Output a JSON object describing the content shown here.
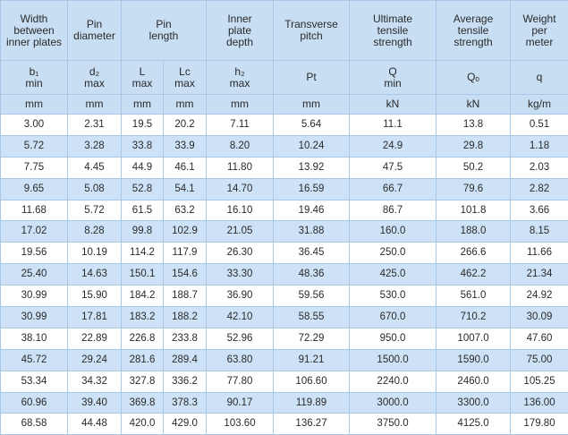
{
  "table": {
    "header": [
      {
        "text": "Width\nbetween\ninner plates",
        "span": 1
      },
      {
        "text": "Pin\ndiameter",
        "span": 1
      },
      {
        "text": "Pin\nlength",
        "span": 2
      },
      {
        "text": "Inner\nplate\ndepth",
        "span": 1
      },
      {
        "text": "Transverse\npitch",
        "span": 1
      },
      {
        "text": "Ultimate\ntensile\nstrength",
        "span": 1
      },
      {
        "text": "Average\ntensile\nstrength",
        "span": 1
      },
      {
        "text": "Weight\nper\nmeter",
        "span": 1
      }
    ],
    "symbols": [
      "b₁\nmin",
      "d₂\nmax",
      "L\nmax",
      "Lᴄ\nmax",
      "h₂\nmax",
      "Pt",
      "Q\nmin",
      "Qₒ",
      "q"
    ],
    "units": [
      "mm",
      "mm",
      "mm",
      "mm",
      "mm",
      "mm",
      "kN",
      "kN",
      "kg/m"
    ],
    "rows": [
      [
        "3.00",
        "2.31",
        "19.5",
        "20.2",
        "7.11",
        "5.64",
        "11.1",
        "13.8",
        "0.51"
      ],
      [
        "5.72",
        "3.28",
        "33.8",
        "33.9",
        "8.20",
        "10.24",
        "24.9",
        "29.8",
        "1.18"
      ],
      [
        "7.75",
        "4.45",
        "44.9",
        "46.1",
        "11.80",
        "13.92",
        "47.5",
        "50.2",
        "2.03"
      ],
      [
        "9.65",
        "5.08",
        "52.8",
        "54.1",
        "14.70",
        "16.59",
        "66.7",
        "79.6",
        "2.82"
      ],
      [
        "11.68",
        "5.72",
        "61.5",
        "63.2",
        "16.10",
        "19.46",
        "86.7",
        "101.8",
        "3.66"
      ],
      [
        "17.02",
        "8.28",
        "99.8",
        "102.9",
        "21.05",
        "31.88",
        "160.0",
        "188.0",
        "8.15"
      ],
      [
        "19.56",
        "10.19",
        "114.2",
        "117.9",
        "26.30",
        "36.45",
        "250.0",
        "266.6",
        "11.66"
      ],
      [
        "25.40",
        "14.63",
        "150.1",
        "154.6",
        "33.30",
        "48.36",
        "425.0",
        "462.2",
        "21.34"
      ],
      [
        "30.99",
        "15.90",
        "184.2",
        "188.7",
        "36.90",
        "59.56",
        "530.0",
        "561.0",
        "24.92"
      ],
      [
        "30.99",
        "17.81",
        "183.2",
        "188.2",
        "42.10",
        "58.55",
        "670.0",
        "710.2",
        "30.09"
      ],
      [
        "38.10",
        "22.89",
        "226.8",
        "233.8",
        "52.96",
        "72.29",
        "950.0",
        "1007.0",
        "47.60"
      ],
      [
        "45.72",
        "29.24",
        "281.6",
        "289.4",
        "63.80",
        "91.21",
        "1500.0",
        "1590.0",
        "75.00"
      ],
      [
        "53.34",
        "34.32",
        "327.8",
        "336.2",
        "77.80",
        "106.60",
        "2240.0",
        "2460.0",
        "105.25"
      ],
      [
        "60.96",
        "39.40",
        "369.8",
        "378.3",
        "90.17",
        "119.89",
        "3000.0",
        "3300.0",
        "136.00"
      ],
      [
        "68.58",
        "44.48",
        "420.0",
        "429.0",
        "103.60",
        "136.27",
        "3750.0",
        "4125.0",
        "179.80"
      ]
    ]
  }
}
